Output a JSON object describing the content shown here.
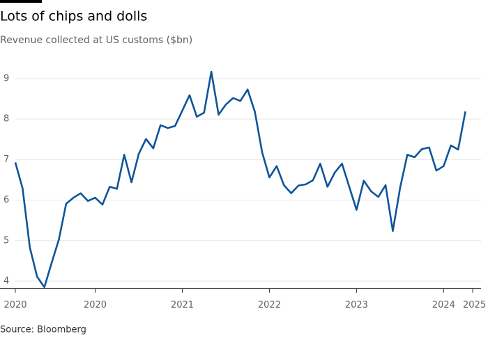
{
  "chart_data": {
    "type": "line",
    "title": "Lots of chips and dolls",
    "subtitle": "Revenue collected at US customs ($bn)",
    "source": "Source: Bloomberg",
    "x": [
      0,
      1,
      2,
      3,
      4,
      5,
      6,
      7,
      8,
      9,
      10,
      11,
      12,
      13,
      14,
      15,
      16,
      17,
      18,
      19,
      20,
      21,
      22,
      23,
      24,
      25,
      26,
      27,
      28,
      29,
      30,
      31,
      32,
      33,
      34,
      35,
      36,
      37,
      38,
      39,
      40,
      41,
      42,
      43,
      44,
      45,
      46,
      47,
      48,
      49,
      50,
      51,
      52,
      53,
      54,
      55,
      56,
      57,
      58,
      59,
      60,
      61,
      62
    ],
    "series": [
      {
        "name": "Revenue",
        "color": "#0f5499",
        "values": [
          6.93,
          6.29,
          4.83,
          4.11,
          3.85,
          4.45,
          5.03,
          5.91,
          6.06,
          6.17,
          5.98,
          6.06,
          5.89,
          6.33,
          6.28,
          7.12,
          6.44,
          7.14,
          7.51,
          7.28,
          7.85,
          7.78,
          7.83,
          8.21,
          8.59,
          8.06,
          8.16,
          9.17,
          8.11,
          8.36,
          8.52,
          8.45,
          8.73,
          8.18,
          7.18,
          6.56,
          6.84,
          6.37,
          6.17,
          6.36,
          6.39,
          6.49,
          6.9,
          6.33,
          6.68,
          6.9,
          6.33,
          5.76,
          6.48,
          6.22,
          6.08,
          6.37,
          5.24,
          6.3,
          7.12,
          7.06,
          7.26,
          7.3,
          6.73,
          6.84,
          7.35,
          7.25,
          8.19
        ]
      }
    ],
    "xlim": [
      0,
      63
    ],
    "xticks": [
      {
        "value": 0,
        "label": "2020"
      },
      {
        "value": 11,
        "label": "2020"
      },
      {
        "value": 23,
        "label": "2021"
      },
      {
        "value": 35,
        "label": "2022"
      },
      {
        "value": 47,
        "label": "2023"
      },
      {
        "value": 59,
        "label": "2024"
      },
      {
        "value": 63,
        "label": "2025"
      }
    ],
    "ylim": [
      3.8,
      9.3
    ],
    "yticks": [
      4,
      5,
      6,
      7,
      8,
      9
    ],
    "grid": true
  }
}
